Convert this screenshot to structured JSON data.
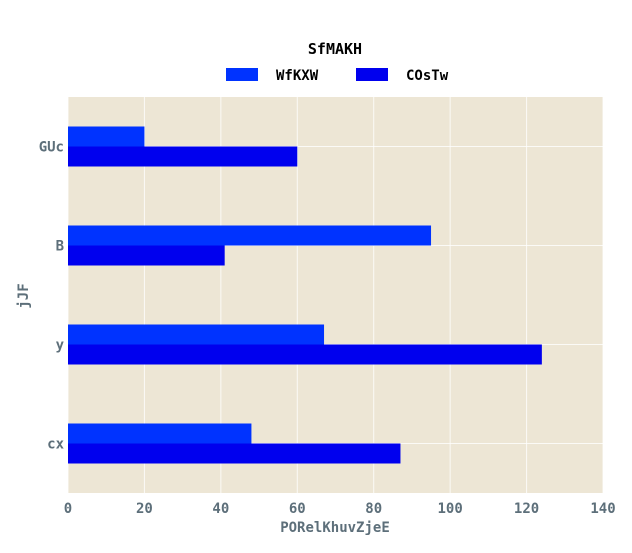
{
  "chart_data": {
    "type": "bar",
    "orientation": "horizontal",
    "title": "SfMAKH",
    "xlabel": "PORelKhuvZjeE",
    "ylabel": "jJF",
    "categories": [
      "GUc",
      "B",
      "y",
      "cx"
    ],
    "series": [
      {
        "name": "WfKXW",
        "color": "#0033ff",
        "values": [
          20,
          95,
          67,
          48
        ]
      },
      {
        "name": "COsTw",
        "color": "#0000ee",
        "values": [
          60,
          41,
          124,
          87
        ]
      }
    ],
    "xlim": [
      0,
      140
    ],
    "xticks": [
      0,
      20,
      40,
      60,
      80,
      100,
      120,
      140
    ],
    "grid": true,
    "legend_position": "top-center",
    "background_color": "#ede6d5"
  }
}
